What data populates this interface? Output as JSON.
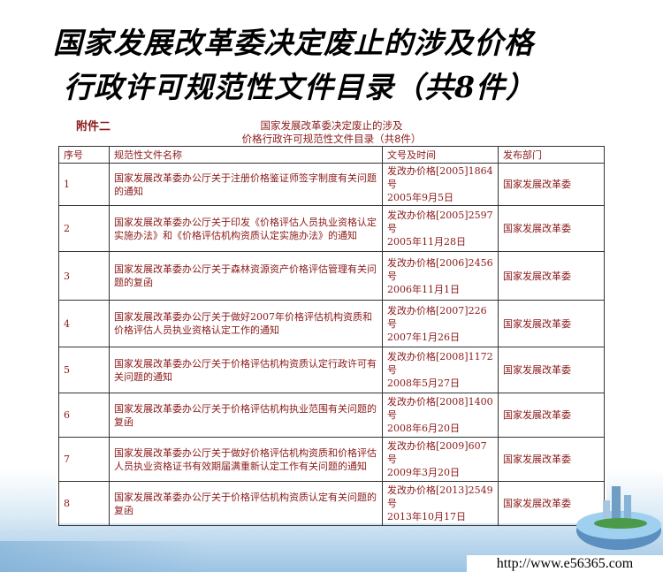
{
  "slide_title": {
    "line1": "国家发展改革委决定废止的涉及价格",
    "line2": "行政许可规范性文件目录（共8件）"
  },
  "document": {
    "annex_label": "附件二",
    "title_line1": "国家发展改革委决定废止的涉及",
    "title_line2": "价格行政许可规范性文件目录（共8件）",
    "columns": [
      "序号",
      "规范性文件名称",
      "文号及时间",
      "发布部门"
    ],
    "rows": [
      {
        "no": "1",
        "name": "国家发展改革委办公厅关于注册价格鉴证师签字制度有关问题的通知",
        "doc_no": "发改办价格[2005]1864号",
        "date": "2005年9月5日",
        "dept": "国家发展改革委"
      },
      {
        "no": "2",
        "name": "国家发展改革委办公厅关于印发《价格评估人员执业资格认定实施办法》和《价格评估机构资质认定实施办法》的通知",
        "doc_no": "发改办价格[2005]2597号",
        "date": "2005年11月28日",
        "dept": "国家发展改革委"
      },
      {
        "no": "3",
        "name": "国家发展改革委办公厅关于森林资源资产价格评估管理有关问题的复函",
        "doc_no": "发改办价格[2006]2456号",
        "date": "2006年11月1日",
        "dept": "国家发展改革委"
      },
      {
        "no": "4",
        "name": "国家发展改革委办公厅关于做好2007年价格评估机构资质和价格评估人员执业资格认定工作的通知",
        "doc_no": "发改办价格[2007]226号",
        "date": "2007年1月26日",
        "dept": "国家发展改革委"
      },
      {
        "no": "5",
        "name": "国家发展改革委办公厅关于价格评估机构资质认定行政许可有关问题的通知",
        "doc_no": "发改办价格[2008]1172号",
        "date": "2008年5月27日",
        "dept": "国家发展改革委"
      },
      {
        "no": "6",
        "name": "国家发展改革委办公厅关于价格评估机构执业范围有关问题的复函",
        "doc_no": "发改办价格[2008]1400号",
        "date": "2008年6月20日",
        "dept": "国家发展改革委"
      },
      {
        "no": "7",
        "name": "国家发展改革委办公厅关于做好价格评估机构资质和价格评估人员执业资格证书有效期届满重新认定工作有关问题的通知",
        "doc_no": "发改办价格[2009]607号",
        "date": "2009年3月20日",
        "dept": "国家发展改革委"
      },
      {
        "no": "8",
        "name": "国家发展改革委办公厅关于价格评估机构资质认定有关问题的复函",
        "doc_no": "发改办价格[2013]2549号",
        "date": "2013年10月17日",
        "dept": "国家发展改革委"
      }
    ]
  },
  "footer": {
    "url": "http://www.e56365.com"
  },
  "colors": {
    "text": "#8b1a1a",
    "title": "#000000"
  }
}
